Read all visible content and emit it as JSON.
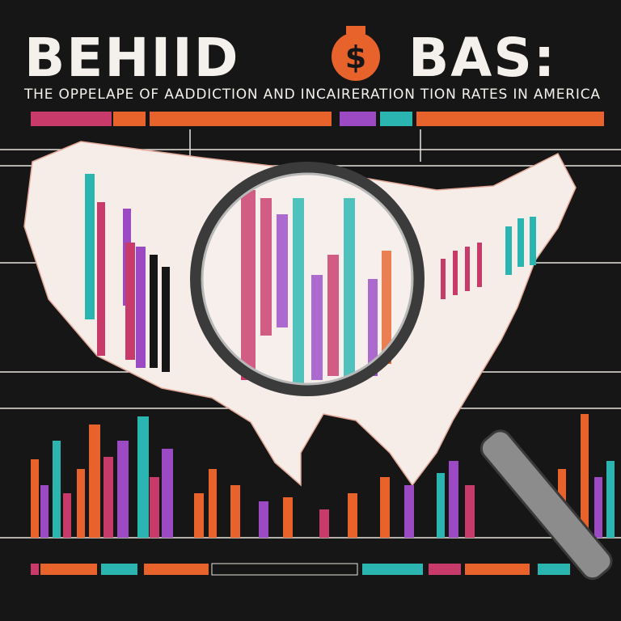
{
  "header": {
    "title_left": "BEHIID",
    "icon": "$",
    "title_right": "BAS:",
    "subtitle": "THE OPPELAPE OF AADDICTION AND INCAIRERATION TION RATES IN AMERICA"
  }
}
